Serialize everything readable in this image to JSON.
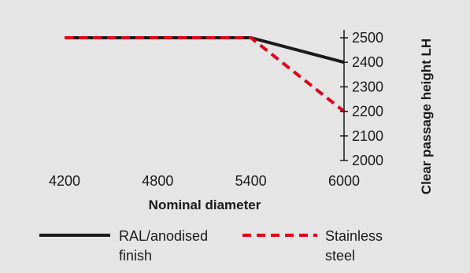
{
  "chart_data": {
    "type": "line",
    "xlabel": "Nominal diameter",
    "ylabel": "Clear passage height LH",
    "x": [
      4200,
      4800,
      5400,
      6000
    ],
    "xlim": [
      4200,
      6000
    ],
    "ylim": [
      2000,
      2500
    ],
    "y_ticks": [
      2000,
      2100,
      2200,
      2300,
      2400,
      2500
    ],
    "y_axis_side": "right",
    "grid": false,
    "legend_position": "bottom",
    "series": [
      {
        "name_lines": [
          "RAL/anodised",
          "finish"
        ],
        "color": "#1a1a1a",
        "style": "solid",
        "points": [
          [
            4200,
            2500
          ],
          [
            5400,
            2500
          ],
          [
            6000,
            2400
          ]
        ]
      },
      {
        "name_lines": [
          "Stainless",
          "steel"
        ],
        "color": "#e3001b",
        "style": "dashed",
        "points": [
          [
            4200,
            2500
          ],
          [
            5400,
            2500
          ],
          [
            6000,
            2200
          ]
        ]
      }
    ]
  }
}
